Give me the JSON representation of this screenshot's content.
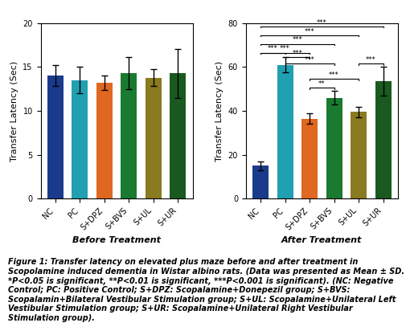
{
  "chart_data": [
    {
      "type": "bar",
      "categories": [
        "NC",
        "PC",
        "S+DPZ",
        "S+BVS",
        "S+UL",
        "S+UR"
      ],
      "values": [
        14.0,
        13.5,
        13.2,
        14.3,
        13.8,
        14.3
      ],
      "errors": [
        1.2,
        1.5,
        0.8,
        1.8,
        1.0,
        2.8
      ],
      "colors": [
        "#1a3a8c",
        "#20a0b0",
        "#e06820",
        "#1a7a30",
        "#8a7a20",
        "#1a5a20"
      ],
      "ylim": [
        0,
        20
      ],
      "yticks": [
        0,
        5,
        10,
        15,
        20
      ],
      "y_label": "Transfer Latency (Sec)",
      "x_label": "Before Treatment"
    },
    {
      "type": "bar",
      "categories": [
        "NC",
        "PC",
        "S+DPZ",
        "S+BVS",
        "S+UL",
        "S+UR"
      ],
      "values": [
        15.0,
        61.0,
        36.5,
        46.0,
        39.5,
        53.5
      ],
      "errors": [
        2.0,
        3.5,
        2.5,
        3.0,
        2.5,
        6.5
      ],
      "colors": [
        "#1a3a8c",
        "#20a0b0",
        "#e06820",
        "#1a7a30",
        "#8a7a20",
        "#1a5a20"
      ],
      "ylim": [
        0,
        80
      ],
      "yticks": [
        0,
        20,
        40,
        60,
        80
      ],
      "y_label": "Transfer Latency (Sec)",
      "x_label": "After Treatment",
      "annotations": [
        {
          "text": "***",
          "from": "NC",
          "to": "S+UR",
          "y": 78
        },
        {
          "text": "***",
          "from": "NC",
          "to": "S+UL",
          "y": 74
        },
        {
          "text": "***",
          "from": "NC",
          "to": "S+BVS",
          "y": 70
        },
        {
          "text": "***",
          "from": "NC",
          "to": "S+DPZ",
          "y": 66
        },
        {
          "text": "***",
          "from": "NC",
          "to": "PC",
          "y": 66
        },
        {
          "text": "***",
          "from": "PC",
          "to": "S+DPZ",
          "y": 64
        },
        {
          "text": "***",
          "from": "PC",
          "to": "S+BVS",
          "y": 61
        },
        {
          "text": "**",
          "from": "S+DPZ",
          "to": "S+BVS",
          "y": 50
        },
        {
          "text": "***",
          "from": "S+DPZ",
          "to": "S+UL",
          "y": 54
        },
        {
          "text": "***",
          "from": "S+UL",
          "to": "S+UR",
          "y": 61
        }
      ]
    }
  ],
  "caption": "Figure 1: Transfer latency on elevated plus maze before and after treatment in Scopolamine induced dementia in Wistar albino rats. (Data was presented as Mean ± SD. *P<0.05 is significant, **P<0.01 is significant, ***P<0.001 is significant). (NC: Negative Control; PC: Positive Control; S+DPZ: Scopalamine+Donepezil group; S+BVS: Scopalamin+Bilateral Vestibular Stimulation group; S+UL: Scopalamine+Unilateral Left Vestibular Stimulation group; S+UR: Scopalamine+Unilateral Right Vestibular Stimulation group)."
}
